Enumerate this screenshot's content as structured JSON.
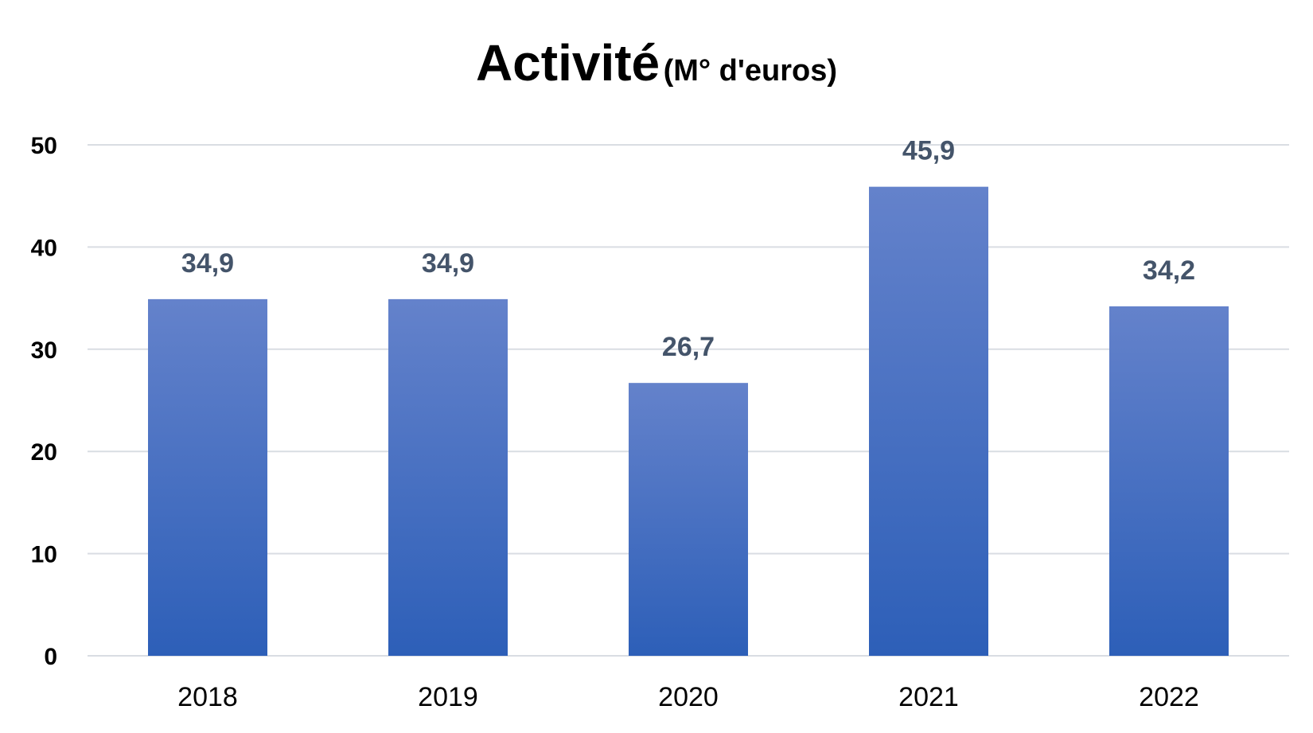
{
  "chart_data": {
    "type": "bar",
    "title": "Activité",
    "subtitle": "(M° d'euros)",
    "categories": [
      "2018",
      "2019",
      "2020",
      "2021",
      "2022"
    ],
    "values": [
      34.9,
      34.9,
      26.7,
      45.9,
      34.2
    ],
    "data_labels": [
      "34,9",
      "34,9",
      "26,7",
      "45,9",
      "34,2"
    ],
    "y_ticks": [
      "0",
      "10",
      "20",
      "30",
      "40",
      "50"
    ],
    "ylim": [
      0,
      50
    ],
    "xlabel": "",
    "ylabel": "",
    "grid": true,
    "legend": "none",
    "colors": {
      "bar_top": "#6482cb",
      "bar_bottom": "#2d5fb8",
      "label": "#44546a",
      "grid": "#d9dde3"
    }
  }
}
